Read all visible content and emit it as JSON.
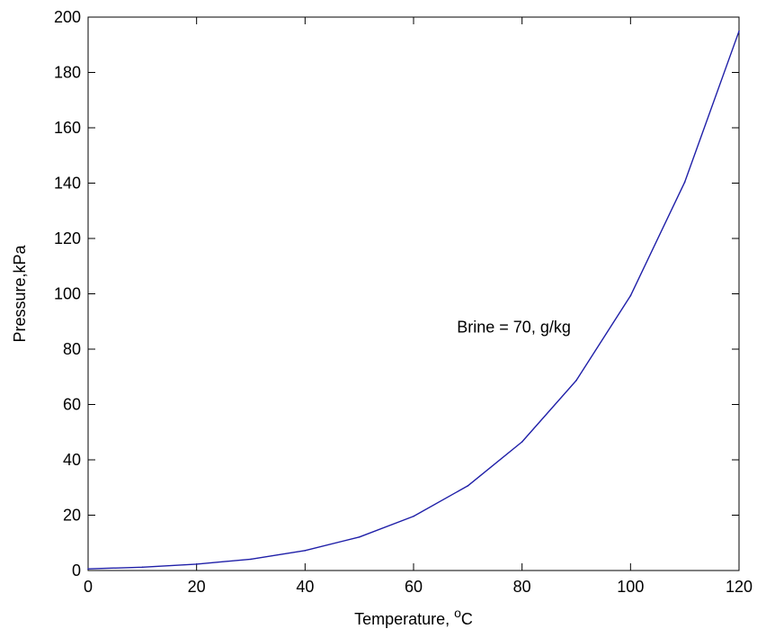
{
  "chart_data": {
    "type": "line",
    "xlabel": "Temperature, ",
    "xlabel_superscript": "o",
    "xlabel_unit": "C",
    "ylabel": "Pressure,kPa",
    "xlim": [
      0,
      120
    ],
    "ylim": [
      0,
      200
    ],
    "xticks": [
      "0",
      "20",
      "40",
      "60",
      "80",
      "100",
      "120"
    ],
    "yticks": [
      "0",
      "20",
      "40",
      "60",
      "80",
      "100",
      "120",
      "140",
      "160",
      "180",
      "200"
    ],
    "grid": false,
    "series": [
      {
        "color": "#1f1fa8",
        "x": [
          0,
          10,
          20,
          30,
          40,
          50,
          60,
          70,
          80,
          90,
          100,
          110,
          120
        ],
        "y": [
          0.6,
          1.2,
          2.3,
          4.1,
          7.2,
          12.1,
          19.6,
          30.6,
          46.5,
          68.7,
          99.3,
          140.4,
          194.9
        ]
      }
    ],
    "annotations": [
      {
        "text": "Brine = 70, g/kg",
        "x": 68,
        "y": 88
      }
    ]
  }
}
